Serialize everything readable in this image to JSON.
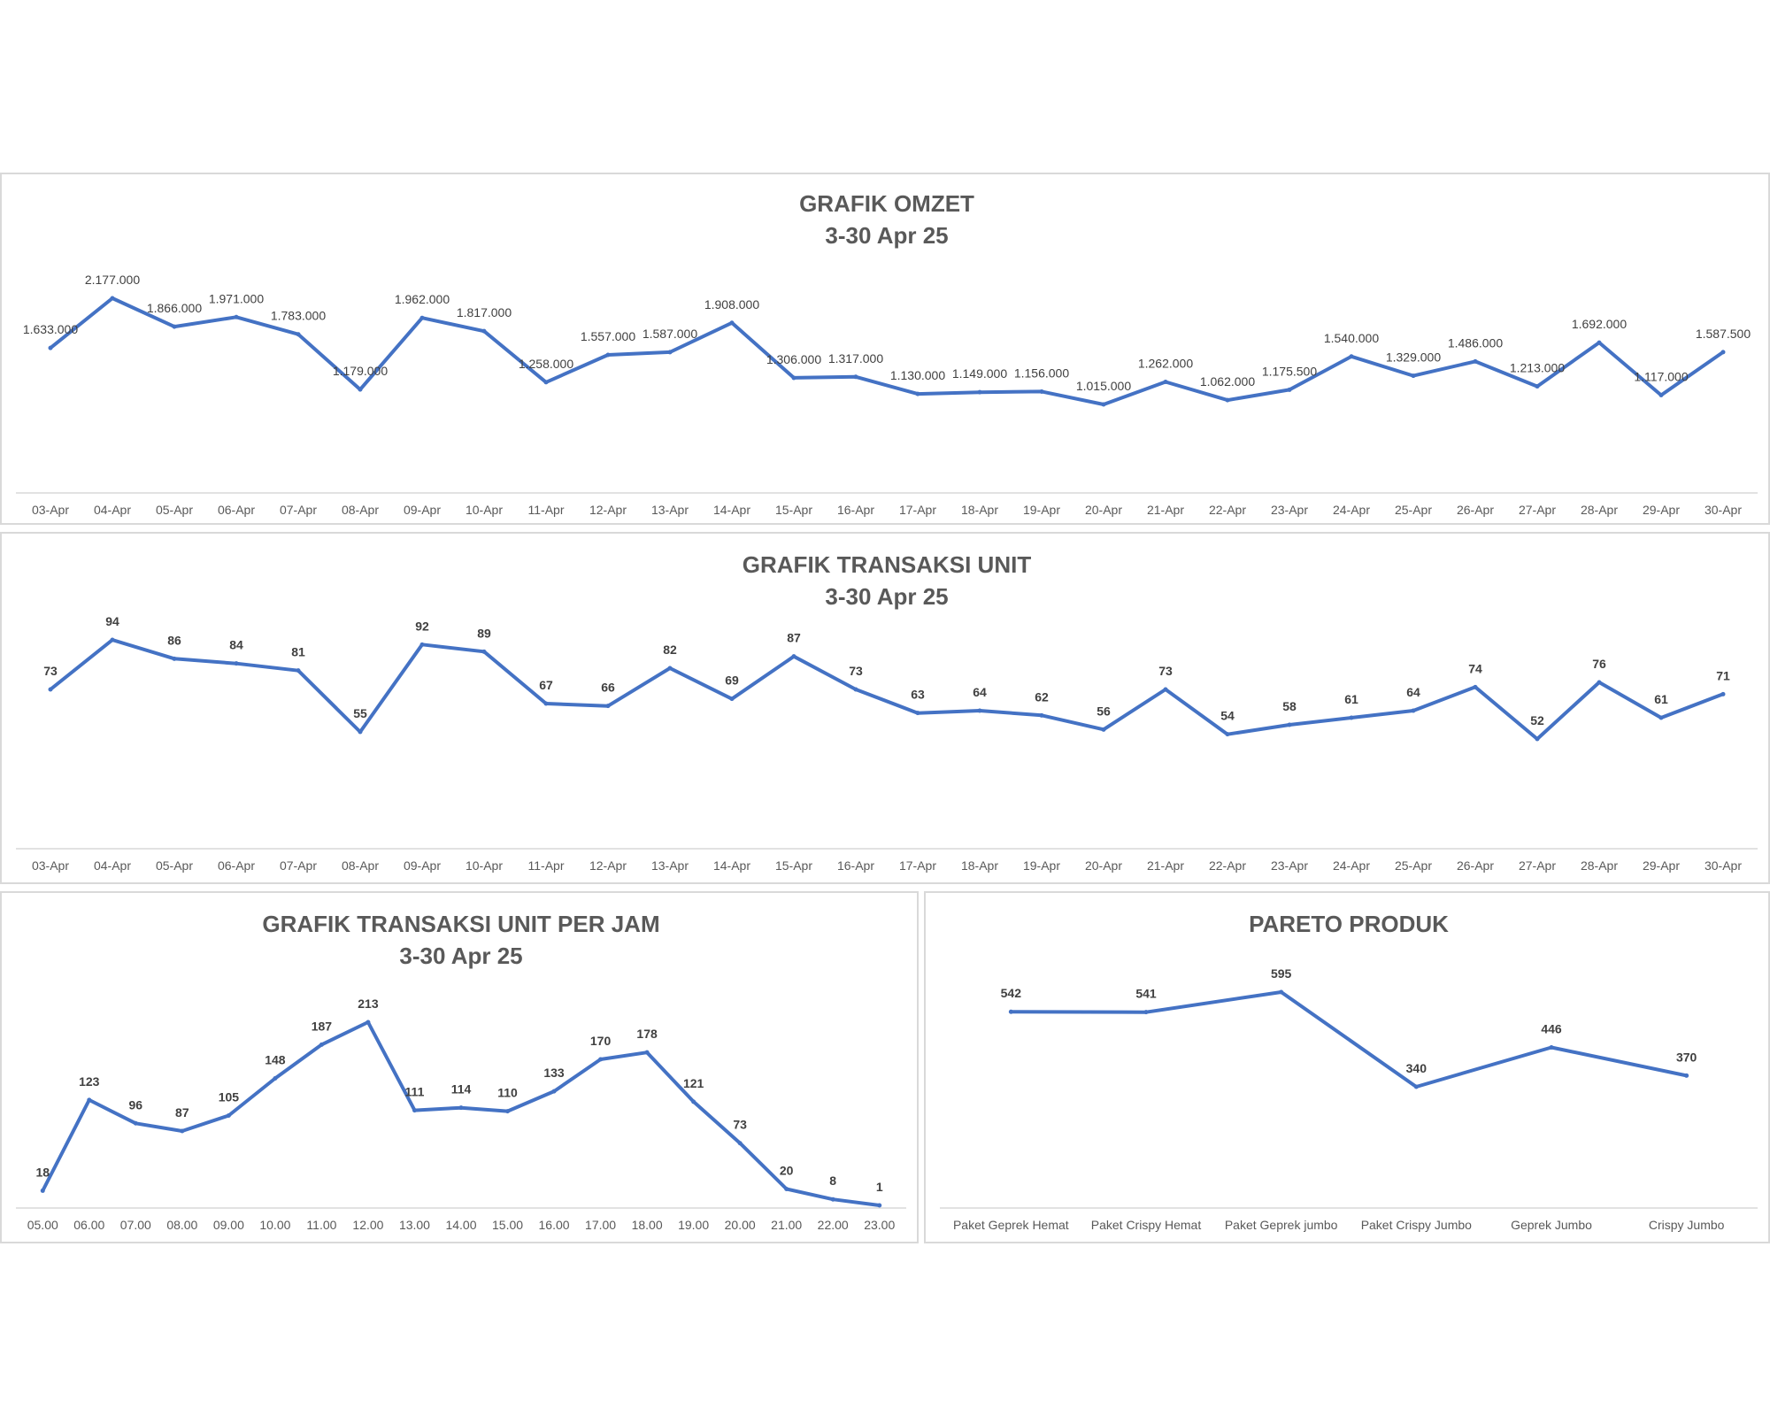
{
  "colors": {
    "line": "#4472c4",
    "title": "#595959",
    "label": "#404040",
    "axis": "#d9d9d9"
  },
  "chart_data": [
    {
      "id": "omzet",
      "type": "line",
      "title": "GRAFIK OMZET",
      "subtitle": "3-30 Apr 25",
      "categories": [
        "03-Apr",
        "04-Apr",
        "05-Apr",
        "06-Apr",
        "07-Apr",
        "08-Apr",
        "09-Apr",
        "10-Apr",
        "11-Apr",
        "12-Apr",
        "13-Apr",
        "14-Apr",
        "15-Apr",
        "16-Apr",
        "17-Apr",
        "18-Apr",
        "19-Apr",
        "20-Apr",
        "21-Apr",
        "22-Apr",
        "23-Apr",
        "24-Apr",
        "25-Apr",
        "26-Apr",
        "27-Apr",
        "28-Apr",
        "29-Apr",
        "30-Apr"
      ],
      "values": [
        1633000,
        2177000,
        1866000,
        1971000,
        1783000,
        1179000,
        1962000,
        1817000,
        1258000,
        1557000,
        1587000,
        1908000,
        1306000,
        1317000,
        1130000,
        1149000,
        1156000,
        1015000,
        1262000,
        1062000,
        1175500,
        1540000,
        1329000,
        1486000,
        1213000,
        1692000,
        1117000,
        1587500
      ],
      "value_labels": [
        "1.633.000",
        "2.177.000",
        "1.866.000",
        "1.971.000",
        "1.783.000",
        "1.179.000",
        "1.962.000",
        "1.817.000",
        "1.258.000",
        "1.557.000",
        "1.587.000",
        "1.908.000",
        "1.306.000",
        "1.317.000",
        "1.130.000",
        "1.149.000",
        "1.156.000",
        "1.015.000",
        "1.262.000",
        "1.062.000",
        "1.175.500",
        "1.540.000",
        "1.329.000",
        "1.486.000",
        "1.213.000",
        "1.692.000",
        "1.117.000",
        "1.587.500"
      ],
      "grid": false,
      "legend": "none"
    },
    {
      "id": "unit",
      "type": "line",
      "title": "GRAFIK TRANSAKSI UNIT",
      "subtitle": "3-30 Apr 25",
      "categories": [
        "03-Apr",
        "04-Apr",
        "05-Apr",
        "06-Apr",
        "07-Apr",
        "08-Apr",
        "09-Apr",
        "10-Apr",
        "11-Apr",
        "12-Apr",
        "13-Apr",
        "14-Apr",
        "15-Apr",
        "16-Apr",
        "17-Apr",
        "18-Apr",
        "19-Apr",
        "20-Apr",
        "21-Apr",
        "22-Apr",
        "23-Apr",
        "24-Apr",
        "25-Apr",
        "26-Apr",
        "27-Apr",
        "28-Apr",
        "29-Apr",
        "30-Apr"
      ],
      "values": [
        73,
        94,
        86,
        84,
        81,
        55,
        92,
        89,
        67,
        66,
        82,
        69,
        87,
        73,
        63,
        64,
        62,
        56,
        73,
        54,
        58,
        61,
        64,
        74,
        52,
        76,
        61,
        71
      ],
      "value_labels": [
        "73",
        "94",
        "86",
        "84",
        "81",
        "55",
        "92",
        "89",
        "67",
        "66",
        "82",
        "69",
        "87",
        "73",
        "63",
        "64",
        "62",
        "56",
        "73",
        "54",
        "58",
        "61",
        "64",
        "74",
        "52",
        "76",
        "61",
        "71"
      ],
      "grid": false,
      "legend": "none"
    },
    {
      "id": "jam",
      "type": "line",
      "title": "GRAFIK TRANSAKSI UNIT PER JAM",
      "subtitle": "3-30 Apr 25",
      "categories": [
        "05.00",
        "06.00",
        "07.00",
        "08.00",
        "09.00",
        "10.00",
        "11.00",
        "12.00",
        "13.00",
        "14.00",
        "15.00",
        "16.00",
        "17.00",
        "18.00",
        "19.00",
        "20.00",
        "21.00",
        "22.00",
        "23.00"
      ],
      "values": [
        18,
        123,
        96,
        87,
        105,
        148,
        187,
        213,
        111,
        114,
        110,
        133,
        170,
        178,
        121,
        73,
        20,
        8,
        1
      ],
      "value_labels": [
        "18",
        "123",
        "96",
        "87",
        "105",
        "148",
        "187",
        "213",
        "111",
        "114",
        "110",
        "133",
        "170",
        "178",
        "121",
        "73",
        "20",
        "8",
        "1"
      ],
      "grid": false,
      "legend": "none"
    },
    {
      "id": "pareto",
      "type": "line",
      "title": "PARETO PRODUK",
      "subtitle": "",
      "categories": [
        "Paket Geprek Hemat",
        "Paket Crispy Hemat",
        "Paket Geprek jumbo",
        "Paket Crispy Jumbo",
        "Geprek Jumbo",
        "Crispy Jumbo"
      ],
      "values": [
        542,
        541,
        595,
        340,
        446,
        370
      ],
      "value_labels": [
        "542",
        "541",
        "595",
        "340",
        "446",
        "370"
      ],
      "grid": false,
      "legend": "none"
    }
  ]
}
